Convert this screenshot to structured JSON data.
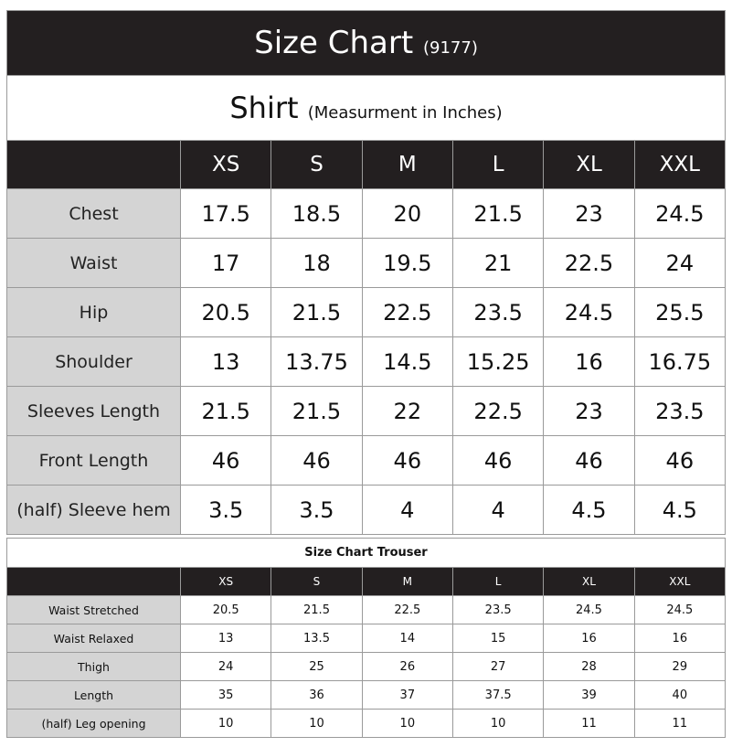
{
  "shirt": {
    "title": "Size Chart",
    "code": "(9177)",
    "subtitle": "Shirt",
    "unit_note": "(Measurment in Inches)",
    "sizes": [
      "XS",
      "S",
      "M",
      "L",
      "XL",
      "XXL"
    ],
    "rows": [
      {
        "label": "Chest",
        "values": [
          "17.5",
          "18.5",
          "20",
          "21.5",
          "23",
          "24.5"
        ]
      },
      {
        "label": "Waist",
        "values": [
          "17",
          "18",
          "19.5",
          "21",
          "22.5",
          "24"
        ]
      },
      {
        "label": "Hip",
        "values": [
          "20.5",
          "21.5",
          "22.5",
          "23.5",
          "24.5",
          "25.5"
        ]
      },
      {
        "label": "Shoulder",
        "values": [
          "13",
          "13.75",
          "14.5",
          "15.25",
          "16",
          "16.75"
        ]
      },
      {
        "label": "Sleeves Length",
        "values": [
          "21.5",
          "21.5",
          "22",
          "22.5",
          "23",
          "23.5"
        ]
      },
      {
        "label": "Front Length",
        "values": [
          "46",
          "46",
          "46",
          "46",
          "46",
          "46"
        ]
      },
      {
        "label": "(half) Sleeve hem",
        "values": [
          "3.5",
          "3.5",
          "4",
          "4",
          "4.5",
          "4.5"
        ]
      }
    ]
  },
  "trouser": {
    "title": "Size Chart Trouser",
    "sizes": [
      "XS",
      "S",
      "M",
      "L",
      "XL",
      "XXL"
    ],
    "rows": [
      {
        "label": "Waist Stretched",
        "values": [
          "20.5",
          "21.5",
          "22.5",
          "23.5",
          "24.5",
          "24.5"
        ]
      },
      {
        "label": "Waist Relaxed",
        "values": [
          "13",
          "13.5",
          "14",
          "15",
          "16",
          "16"
        ]
      },
      {
        "label": "Thigh",
        "values": [
          "24",
          "25",
          "26",
          "27",
          "28",
          "29"
        ]
      },
      {
        "label": "Length",
        "values": [
          "35",
          "36",
          "37",
          "37.5",
          "39",
          "40"
        ]
      },
      {
        "label": "(half) Leg opening",
        "values": [
          "10",
          "10",
          "10",
          "10",
          "11",
          "11"
        ]
      }
    ]
  }
}
